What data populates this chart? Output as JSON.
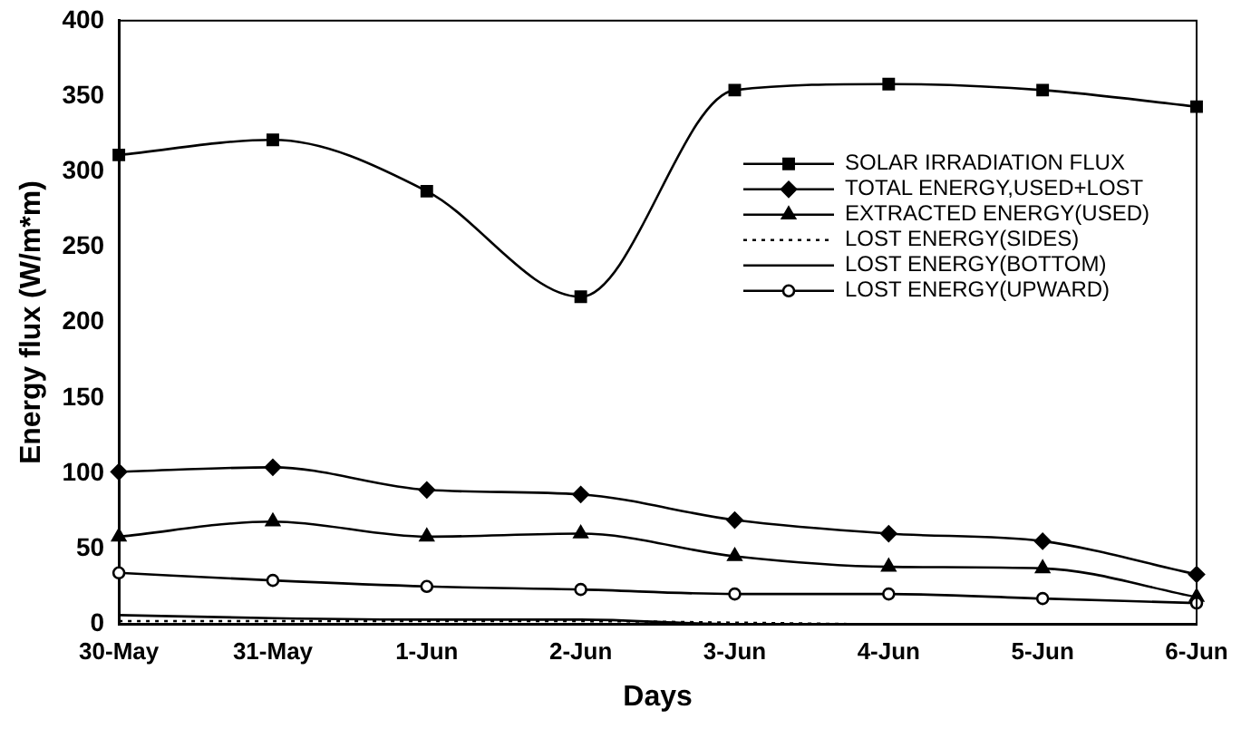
{
  "chart_data": {
    "type": "line",
    "xlabel": "Days",
    "ylabel": "Energy flux (W/m*m)",
    "categories": [
      "30-May",
      "31-May",
      "1-Jun",
      "2-Jun",
      "3-Jun",
      "4-Jun",
      "5-Jun",
      "6-Jun"
    ],
    "ylim": [
      0,
      400
    ],
    "yticks": [
      0,
      50,
      100,
      150,
      200,
      250,
      300,
      350,
      400
    ],
    "grid": false,
    "legend": "right",
    "series": [
      {
        "name": "SOLAR IRRADIATION FLUX",
        "color": "#000000",
        "marker": "square",
        "values": [
          311,
          321,
          287,
          217,
          354,
          358,
          354,
          343
        ]
      },
      {
        "name": "TOTAL ENERGY,USED+LOST",
        "color": "#000000",
        "marker": "diamond",
        "values": [
          101,
          104,
          89,
          86,
          69,
          60,
          55,
          33
        ]
      },
      {
        "name": "EXTRACTED ENERGY(USED)",
        "color": "#000000",
        "marker": "triangle",
        "values": [
          58,
          68,
          58,
          60,
          45,
          38,
          37,
          18
        ]
      },
      {
        "name": "LOST ENERGY(SIDES)",
        "color": "#000000",
        "marker": "none",
        "line_style": "dotted",
        "values": [
          2,
          2,
          2,
          2,
          1,
          0,
          0,
          0
        ]
      },
      {
        "name": "LOST ENERGY(BOTTOM)",
        "color": "#000000",
        "marker": "none",
        "values": [
          6,
          4,
          3,
          3,
          0,
          0,
          0,
          0
        ]
      },
      {
        "name": "LOST ENERGY(UPWARD)",
        "color": "#000000",
        "marker": "circle",
        "values": [
          34,
          29,
          25,
          23,
          20,
          20,
          17,
          14
        ]
      }
    ]
  }
}
